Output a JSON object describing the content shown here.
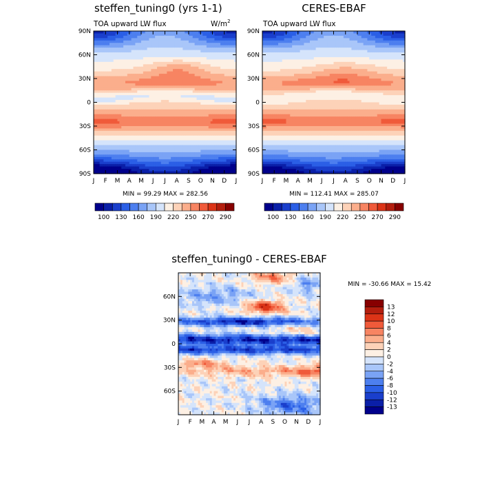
{
  "chart_data": [
    {
      "type": "heatmap",
      "title": "steffen_tuning0 (yrs 1-1)",
      "subtitle": "TOA upward LW flux",
      "units_label": "W/m",
      "units_sup": "2",
      "x_ticks": [
        "J",
        "F",
        "M",
        "A",
        "M",
        "J",
        "J",
        "A",
        "S",
        "O",
        "N",
        "D",
        "J"
      ],
      "y_ticks": [
        "90N",
        "60N",
        "30N",
        "0",
        "30S",
        "60S",
        "90S"
      ],
      "stats": "MIN =  99.29 MAX = 282.56",
      "colorbar_labels": [
        "100",
        "130",
        "160",
        "190",
        "220",
        "250",
        "270",
        "290"
      ],
      "colors": [
        "#00008b",
        "#0a1fa8",
        "#1a3fcc",
        "#2b5fe6",
        "#4d7fef",
        "#7aa3f5",
        "#a9c6f9",
        "#d5e4fb",
        "#fdf0e4",
        "#fdd2b8",
        "#fbae8c",
        "#f78462",
        "#f05a3a",
        "#dc3417",
        "#b41e0e",
        "#870000"
      ],
      "value_range": [
        85,
        300
      ],
      "field": "lw_model"
    },
    {
      "type": "heatmap",
      "title": "CERES-EBAF",
      "subtitle": "TOA upward LW flux",
      "x_ticks": [
        "J",
        "F",
        "M",
        "A",
        "M",
        "J",
        "J",
        "A",
        "S",
        "O",
        "N",
        "D",
        "J"
      ],
      "y_ticks": [
        "90N",
        "60N",
        "30N",
        "0",
        "30S",
        "60S",
        "90S"
      ],
      "stats": "MIN = 112.41 MAX = 285.07",
      "colorbar_labels": [
        "100",
        "130",
        "160",
        "190",
        "220",
        "250",
        "270",
        "290"
      ],
      "value_range": [
        85,
        300
      ],
      "field": "lw_obs"
    },
    {
      "type": "heatmap",
      "title": "steffen_tuning0 - CERES-EBAF",
      "x_ticks": [
        "J",
        "F",
        "M",
        "A",
        "M",
        "J",
        "J",
        "A",
        "S",
        "O",
        "N",
        "D",
        "J"
      ],
      "y_ticks": [
        "60N",
        "30N",
        "0",
        "30S",
        "60S"
      ],
      "stats": "MIN = -30.66 MAX =  15.42",
      "colorbar_labels": [
        "13",
        "12",
        "10",
        "8",
        "6",
        "4",
        "2",
        "0",
        "-2",
        "-4",
        "-6",
        "-8",
        "-10",
        "-12",
        "-13"
      ],
      "colors": [
        "#870000",
        "#b41e0e",
        "#dc3417",
        "#f05a3a",
        "#f78462",
        "#fbae8c",
        "#fdd2b8",
        "#fdf0e4",
        "#d5e4fb",
        "#a9c6f9",
        "#7aa3f5",
        "#4d7fef",
        "#2b5fe6",
        "#1a3fcc",
        "#0a1fa8",
        "#00008b"
      ],
      "value_range": [
        -14,
        14
      ],
      "field": "lw_diff"
    }
  ]
}
